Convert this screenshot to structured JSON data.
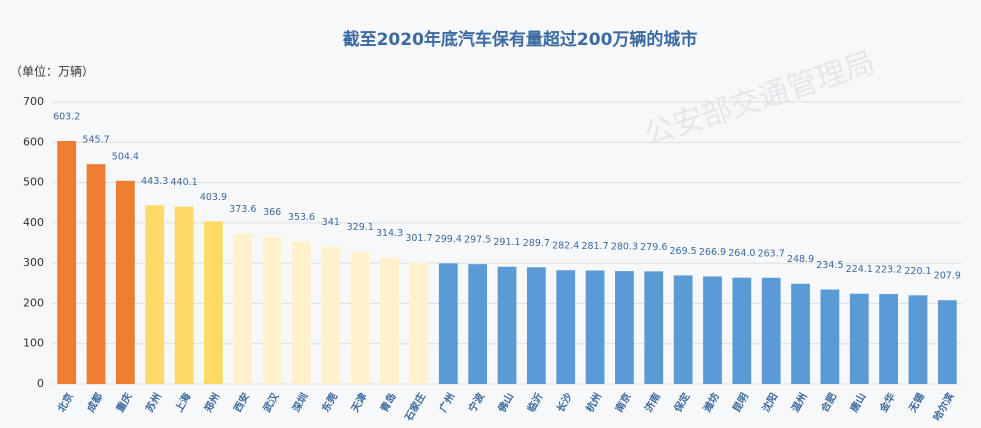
{
  "chart_data": {
    "type": "bar",
    "title": "截至2020年底汽车保有量超过200万辆的城市",
    "y_label": "（单位：万辆）",
    "watermark": "公安部交通管理局",
    "categories": [
      "北京",
      "成都",
      "重庆",
      "苏州",
      "上海",
      "郑州",
      "西安",
      "武汉",
      "深圳",
      "东莞",
      "天津",
      "青岛",
      "石家庄",
      "广州",
      "宁波",
      "佛山",
      "临沂",
      "长沙",
      "杭州",
      "南京",
      "济南",
      "保定",
      "潍坊",
      "昆明",
      "沈阳",
      "温州",
      "合肥",
      "唐山",
      "金华",
      "无锡",
      "哈尔滨"
    ],
    "values": [
      603.2,
      545.7,
      504.4,
      443.3,
      440.1,
      403.9,
      373.6,
      366,
      353.6,
      341,
      329.1,
      314.3,
      301.7,
      299.4,
      297.5,
      291.1,
      289.7,
      282.4,
      281.7,
      280.3,
      279.6,
      269.5,
      266.9,
      264.0,
      263.7,
      248.9,
      234.5,
      224.1,
      223.2,
      220.1,
      207.9
    ],
    "value_labels": [
      "603.2",
      "545.7",
      "504.4",
      "443.3",
      "440.1",
      "403.9",
      "373.6",
      "366",
      "353.6",
      "341",
      "329.1",
      "314.3",
      "301.7",
      "299.4",
      "297.5",
      "291.1",
      "289.7",
      "282.4",
      "281.7",
      "280.3",
      "279.6",
      "269.5",
      "266.9",
      "264.0",
      "263.7",
      "248.9",
      "234.5",
      "224.1",
      "223.2",
      "220.1",
      "207.9"
    ],
    "colors": [
      "#ed7d31",
      "#ed7d31",
      "#ed7d31",
      "#ffd966",
      "#ffd966",
      "#ffd966",
      "#fff2cc",
      "#fff2cc",
      "#fff2cc",
      "#fff2cc",
      "#fff2cc",
      "#fff2cc",
      "#fff2cc",
      "#5b9bd5",
      "#5b9bd5",
      "#5b9bd5",
      "#5b9bd5",
      "#5b9bd5",
      "#5b9bd5",
      "#5b9bd5",
      "#5b9bd5",
      "#5b9bd5",
      "#5b9bd5",
      "#5b9bd5",
      "#5b9bd5",
      "#5b9bd5",
      "#5b9bd5",
      "#5b9bd5",
      "#5b9bd5",
      "#5b9bd5",
      "#5b9bd5"
    ],
    "ylim": [
      0,
      700
    ],
    "yticks": [
      0,
      100,
      200,
      300,
      400,
      500,
      600,
      700
    ],
    "grid": true
  }
}
